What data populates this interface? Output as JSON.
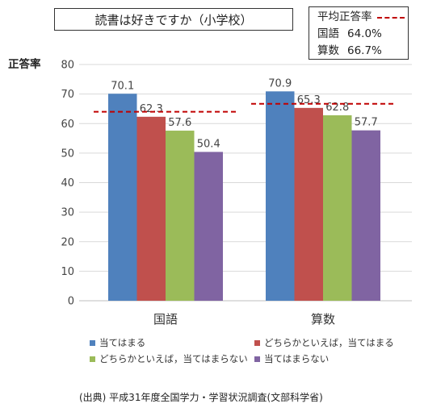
{
  "chart_data": {
    "type": "bar",
    "title": "読書は好きですか（小学校）",
    "ylabel": "正答率",
    "ylim": [
      0,
      80
    ],
    "yticks": [
      0,
      10,
      20,
      30,
      40,
      50,
      60,
      70,
      80
    ],
    "categories": [
      "国語",
      "算数"
    ],
    "series": [
      {
        "name": "当てはまる",
        "values": [
          70.1,
          70.9
        ],
        "color": "#4f81bd"
      },
      {
        "name": "どちらかといえば，当てはまる",
        "values": [
          62.3,
          65.3
        ],
        "color": "#c0504d"
      },
      {
        "name": "どちらかといえば，当てはまらない",
        "values": [
          57.6,
          62.8
        ],
        "color": "#9bbb59"
      },
      {
        "name": "当てはまらない",
        "values": [
          50.4,
          57.7
        ],
        "color": "#8064a2"
      }
    ],
    "averages": [
      {
        "category": "国語",
        "value": 64.0,
        "label": "64.0%"
      },
      {
        "category": "算数",
        "value": 66.7,
        "label": "66.7%"
      }
    ],
    "average_label": "平均正答率",
    "average_color": "#c00000",
    "grid": true,
    "legend_position": "bottom"
  },
  "source": "(出典) 平成31年度全国学力・学習状況調査(文部科学省)"
}
